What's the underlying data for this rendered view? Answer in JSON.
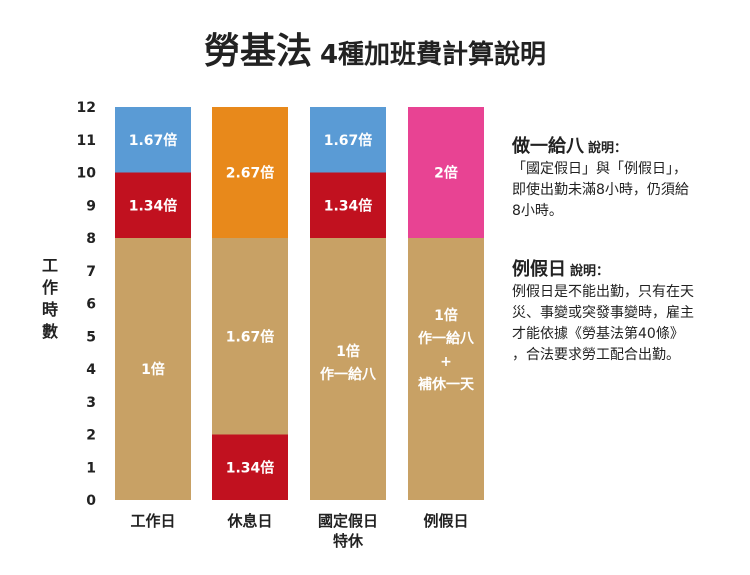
{
  "title": {
    "main": "勞基法",
    "sub": "4種加班費計算說明"
  },
  "chart_data": {
    "type": "bar",
    "stacked": true,
    "ylabel": "工作時數",
    "ylim": [
      0,
      12
    ],
    "yticks": [
      0,
      1,
      2,
      3,
      4,
      5,
      6,
      7,
      8,
      9,
      10,
      11,
      12
    ],
    "categories": [
      {
        "name": "工作日",
        "lines": [
          "工作日"
        ]
      },
      {
        "name": "休息日",
        "lines": [
          "休息日"
        ]
      },
      {
        "name": "國定假日特休",
        "lines": [
          "國定假日",
          "特休"
        ]
      },
      {
        "name": "例假日",
        "lines": [
          "例假日"
        ]
      }
    ],
    "segments": [
      [
        {
          "from": 0,
          "to": 8,
          "color": "#c8a165",
          "label": [
            "1倍"
          ],
          "label_color": "#ffffff"
        },
        {
          "from": 8,
          "to": 10,
          "color": "#c1111f",
          "label": [
            "1.34倍"
          ],
          "label_color": "#ffffff"
        },
        {
          "from": 10,
          "to": 12,
          "color": "#5a9bd5",
          "label": [
            "1.67倍"
          ],
          "label_color": "#ffffff",
          "label_at": 11
        }
      ],
      [
        {
          "from": 0,
          "to": 2,
          "color": "#c1111f",
          "label": [
            "1.34倍"
          ],
          "label_color": "#ffffff"
        },
        {
          "from": 2,
          "to": 8,
          "color": "#c8a165",
          "label": [
            "1.67倍"
          ],
          "label_color": "#ffffff"
        },
        {
          "from": 8,
          "to": 12,
          "color": "#e8891b",
          "label": [
            "2.67倍"
          ],
          "label_color": "#ffffff",
          "label_at": 10
        }
      ],
      [
        {
          "from": 0,
          "to": 8,
          "color": "#c8a165",
          "label": [
            "1倍",
            "作一給八"
          ],
          "label_color": "#ffffff",
          "label_at": 4.2
        },
        {
          "from": 8,
          "to": 10,
          "color": "#c1111f",
          "label": [
            "1.34倍"
          ],
          "label_color": "#ffffff"
        },
        {
          "from": 10,
          "to": 12,
          "color": "#5a9bd5",
          "label": [
            "1.67倍"
          ],
          "label_color": "#ffffff",
          "label_at": 11
        }
      ],
      [
        {
          "from": 0,
          "to": 8,
          "color": "#c8a165",
          "label": [
            "1倍",
            "作一給八",
            "+",
            "補休一天"
          ],
          "label_color": "#ffffff",
          "label_at": 4.6
        },
        {
          "from": 8,
          "to": 12,
          "color": "#e84393",
          "label": [
            "2倍"
          ],
          "label_color": "#ffffff",
          "label_at": 10
        }
      ]
    ]
  },
  "notes": [
    {
      "head": "做一給八",
      "head_sub": "說明：",
      "body": "「國定假日」與「例假日」，\n即使出勤未滿8小時，仍須給\n8小時。"
    },
    {
      "head": "例假日",
      "head_sub": "說明：",
      "body": "例假日是不能出勤，只有在天\n災、事變或突發事變時，雇主\n才能依據《勞基法第40條》\n，合法要求勞工配合出勤。"
    }
  ]
}
